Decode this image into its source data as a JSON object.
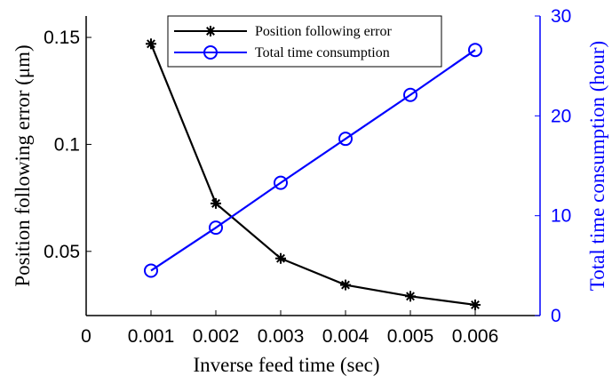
{
  "chart_data": {
    "type": "line",
    "title": "",
    "xlabel": "Inverse feed time (sec)",
    "ylabel_left": "Position following error (μm)",
    "ylabel_right": "Total time consumption (hour)",
    "xlim": [
      0,
      0.007
    ],
    "ylim_left": [
      0.02,
      0.16
    ],
    "ylim_right": [
      0,
      30
    ],
    "x_ticks": [
      "0",
      "0.001",
      "0.002",
      "0.003",
      "0.004",
      "0.005",
      "0.006"
    ],
    "x_tick_values": [
      0,
      0.001,
      0.002,
      0.003,
      0.004,
      0.005,
      0.006
    ],
    "y_left_ticks": [
      "0.05",
      "0.1",
      "0.15"
    ],
    "y_left_tick_values": [
      0.05,
      0.1,
      0.15
    ],
    "y_right_ticks": [
      "0",
      "10",
      "20",
      "30"
    ],
    "y_right_tick_values": [
      0,
      10,
      20,
      30
    ],
    "grid": false,
    "legend_placement": "top",
    "x": [
      0.001,
      0.002,
      0.003,
      0.004,
      0.005,
      0.006
    ],
    "series": [
      {
        "name": "Position following error",
        "axis": "left",
        "marker": "asterisk",
        "color": "#000000",
        "values": [
          0.147,
          0.0724,
          0.0467,
          0.0343,
          0.029,
          0.025
        ]
      },
      {
        "name": "Total time consumption",
        "axis": "right",
        "marker": "circle",
        "color": "#0000ff",
        "values": [
          4.5,
          8.8,
          13.3,
          17.7,
          22.1,
          26.6
        ]
      }
    ]
  }
}
